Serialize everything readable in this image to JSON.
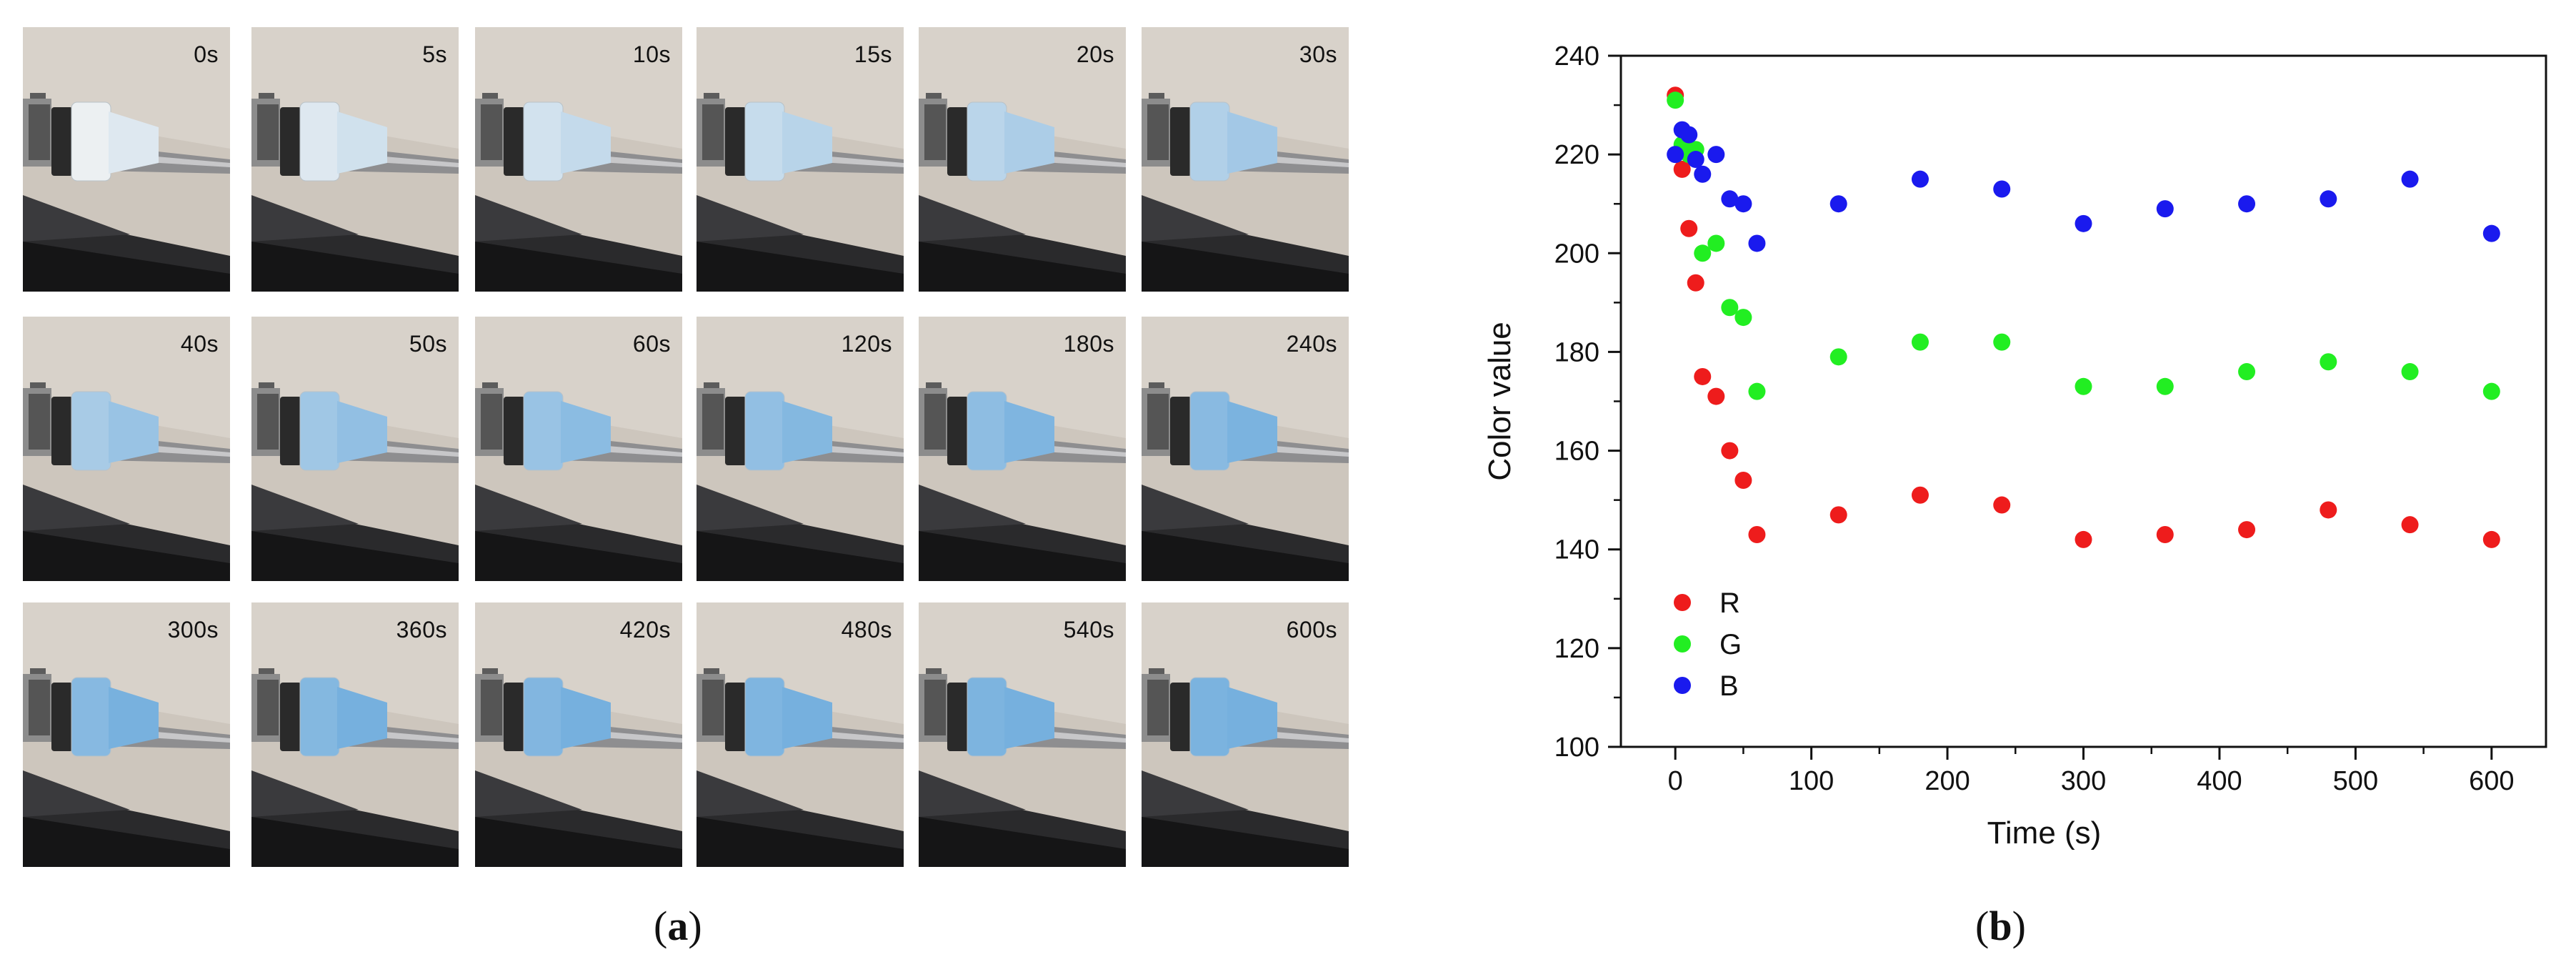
{
  "panel_a": {
    "caption": "a",
    "frames": [
      "0s",
      "5s",
      "10s",
      "15s",
      "20s",
      "30s",
      "40s",
      "50s",
      "60s",
      "120s",
      "180s",
      "240s",
      "300s",
      "360s",
      "420s",
      "480s",
      "540s",
      "600s"
    ],
    "cap_blue_level": [
      0.0,
      0.12,
      0.22,
      0.32,
      0.42,
      0.5,
      0.58,
      0.64,
      0.7,
      0.76,
      0.8,
      0.84,
      0.86,
      0.88,
      0.9,
      0.92,
      0.94,
      0.96
    ]
  },
  "panel_b": {
    "caption": "b"
  },
  "chart_data": {
    "type": "scatter",
    "title": "",
    "xlabel": "Time (s)",
    "ylabel": "Color value",
    "xlim": [
      -40,
      640
    ],
    "ylim": [
      100,
      240
    ],
    "xticks": [
      0,
      100,
      200,
      300,
      400,
      500,
      600
    ],
    "yticks": [
      100,
      120,
      140,
      160,
      180,
      200,
      220,
      240
    ],
    "legend_position": "bottom-left",
    "series": [
      {
        "name": "R",
        "color": "#ee1c1c",
        "x": [
          0,
          5,
          10,
          15,
          20,
          30,
          40,
          50,
          60,
          120,
          180,
          240,
          300,
          360,
          420,
          480,
          540,
          600
        ],
        "y": [
          232,
          217,
          205,
          194,
          175,
          171,
          160,
          154,
          143,
          147,
          151,
          149,
          142,
          143,
          144,
          148,
          145,
          142
        ]
      },
      {
        "name": "G",
        "color": "#22ee22",
        "x": [
          0,
          5,
          10,
          15,
          20,
          30,
          40,
          50,
          60,
          120,
          180,
          240,
          300,
          360,
          420,
          480,
          540,
          600
        ],
        "y": [
          231,
          222,
          220,
          221,
          200,
          202,
          189,
          187,
          172,
          179,
          182,
          182,
          173,
          173,
          176,
          178,
          176,
          172
        ]
      },
      {
        "name": "B",
        "color": "#1a1aee",
        "x": [
          0,
          5,
          10,
          15,
          20,
          30,
          40,
          50,
          60,
          120,
          180,
          240,
          300,
          360,
          420,
          480,
          540,
          600
        ],
        "y": [
          220,
          225,
          224,
          219,
          216,
          220,
          211,
          210,
          202,
          210,
          215,
          213,
          206,
          209,
          210,
          211,
          215,
          204
        ]
      }
    ]
  }
}
